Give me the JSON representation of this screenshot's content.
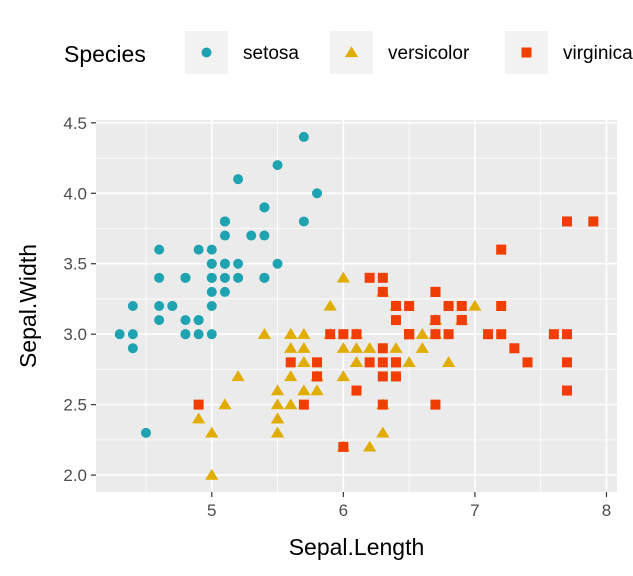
{
  "chart_data": {
    "type": "scatter",
    "title": "",
    "xlabel": "Sepal.Length",
    "ylabel": "Sepal.Width",
    "xlim": [
      4.12,
      8.08
    ],
    "ylim": [
      1.88,
      4.52
    ],
    "xticks": [
      "5",
      "6",
      "7",
      "8"
    ],
    "xtick_values": [
      5,
      6,
      7,
      8
    ],
    "yticks": [
      "2.0",
      "2.5",
      "3.0",
      "3.5",
      "4.0",
      "4.5"
    ],
    "ytick_values": [
      2.0,
      2.5,
      3.0,
      3.5,
      4.0,
      4.5
    ],
    "grid": true,
    "legend": {
      "title": "Species",
      "position": "top"
    },
    "colors": {
      "setosa": "#1fa3b0",
      "versicolor": "#e0ac00",
      "virginica": "#f23d00",
      "panel": "#ebebeb",
      "grid": "#ffffff"
    },
    "series": [
      {
        "name": "setosa",
        "marker": "circle",
        "x": [
          5.1,
          4.9,
          4.7,
          4.6,
          5.0,
          5.4,
          4.6,
          5.0,
          4.4,
          4.9,
          5.4,
          4.8,
          4.8,
          4.3,
          5.8,
          5.7,
          5.4,
          5.1,
          5.7,
          5.1,
          5.4,
          5.1,
          4.6,
          5.1,
          4.8,
          5.0,
          5.0,
          5.2,
          5.2,
          4.7,
          4.8,
          5.4,
          5.2,
          5.5,
          4.9,
          5.0,
          5.5,
          4.9,
          4.4,
          5.1,
          5.0,
          4.5,
          4.4,
          5.0,
          5.1,
          4.8,
          5.1,
          4.6,
          5.3,
          5.0
        ],
        "y": [
          3.5,
          3.0,
          3.2,
          3.1,
          3.6,
          3.9,
          3.4,
          3.4,
          2.9,
          3.1,
          3.7,
          3.4,
          3.0,
          3.0,
          4.0,
          4.4,
          3.9,
          3.5,
          3.8,
          3.8,
          3.4,
          3.7,
          3.6,
          3.3,
          3.4,
          3.0,
          3.4,
          3.5,
          3.4,
          3.2,
          3.1,
          3.4,
          4.1,
          4.2,
          3.1,
          3.2,
          3.5,
          3.6,
          3.0,
          3.4,
          3.5,
          2.3,
          3.2,
          3.5,
          3.8,
          3.0,
          3.8,
          3.2,
          3.7,
          3.3
        ]
      },
      {
        "name": "versicolor",
        "marker": "triangle",
        "x": [
          7.0,
          6.4,
          6.9,
          5.5,
          6.5,
          5.7,
          6.3,
          4.9,
          6.6,
          5.2,
          5.0,
          5.9,
          6.0,
          6.1,
          5.6,
          6.7,
          5.6,
          5.8,
          6.2,
          5.6,
          5.9,
          6.1,
          6.3,
          6.1,
          6.4,
          6.6,
          6.8,
          6.7,
          6.0,
          5.7,
          5.5,
          5.5,
          5.8,
          6.0,
          5.4,
          6.0,
          6.7,
          6.3,
          5.6,
          5.5,
          5.5,
          6.1,
          5.8,
          5.0,
          5.6,
          5.7,
          5.7,
          6.2,
          5.1,
          5.7
        ],
        "y": [
          3.2,
          3.2,
          3.1,
          2.3,
          2.8,
          2.8,
          3.3,
          2.4,
          2.9,
          2.7,
          2.0,
          3.0,
          2.2,
          2.9,
          2.9,
          3.1,
          3.0,
          2.7,
          2.2,
          2.5,
          3.2,
          2.8,
          2.5,
          2.8,
          2.9,
          3.0,
          2.8,
          3.0,
          2.9,
          2.6,
          2.4,
          2.4,
          2.7,
          2.7,
          3.0,
          3.4,
          3.1,
          2.3,
          3.0,
          2.5,
          2.6,
          3.0,
          2.6,
          2.3,
          2.7,
          3.0,
          2.9,
          2.9,
          2.5,
          2.8
        ]
      },
      {
        "name": "virginica",
        "marker": "square",
        "x": [
          6.3,
          5.8,
          7.1,
          6.3,
          6.5,
          7.6,
          4.9,
          7.3,
          6.7,
          7.2,
          6.5,
          6.4,
          6.8,
          5.7,
          5.8,
          6.4,
          6.5,
          7.7,
          7.7,
          6.0,
          6.9,
          5.6,
          7.7,
          6.3,
          6.7,
          7.2,
          6.2,
          6.1,
          6.4,
          7.2,
          7.4,
          7.9,
          6.4,
          6.3,
          6.1,
          7.7,
          6.3,
          6.4,
          6.0,
          6.9,
          6.7,
          6.9,
          5.8,
          6.8,
          6.7,
          6.7,
          6.3,
          6.5,
          6.2,
          5.9
        ],
        "y": [
          3.3,
          2.7,
          3.0,
          2.9,
          3.0,
          3.0,
          2.5,
          2.9,
          2.5,
          3.6,
          3.2,
          2.7,
          3.0,
          2.5,
          2.8,
          3.2,
          3.0,
          3.8,
          2.6,
          2.2,
          3.2,
          2.8,
          2.8,
          2.7,
          3.3,
          3.2,
          2.8,
          3.0,
          2.8,
          3.0,
          2.8,
          3.8,
          2.8,
          2.8,
          2.6,
          3.0,
          3.4,
          3.1,
          3.0,
          3.1,
          3.1,
          3.1,
          2.7,
          3.2,
          3.3,
          3.0,
          2.5,
          3.0,
          3.4,
          3.0
        ]
      }
    ]
  }
}
